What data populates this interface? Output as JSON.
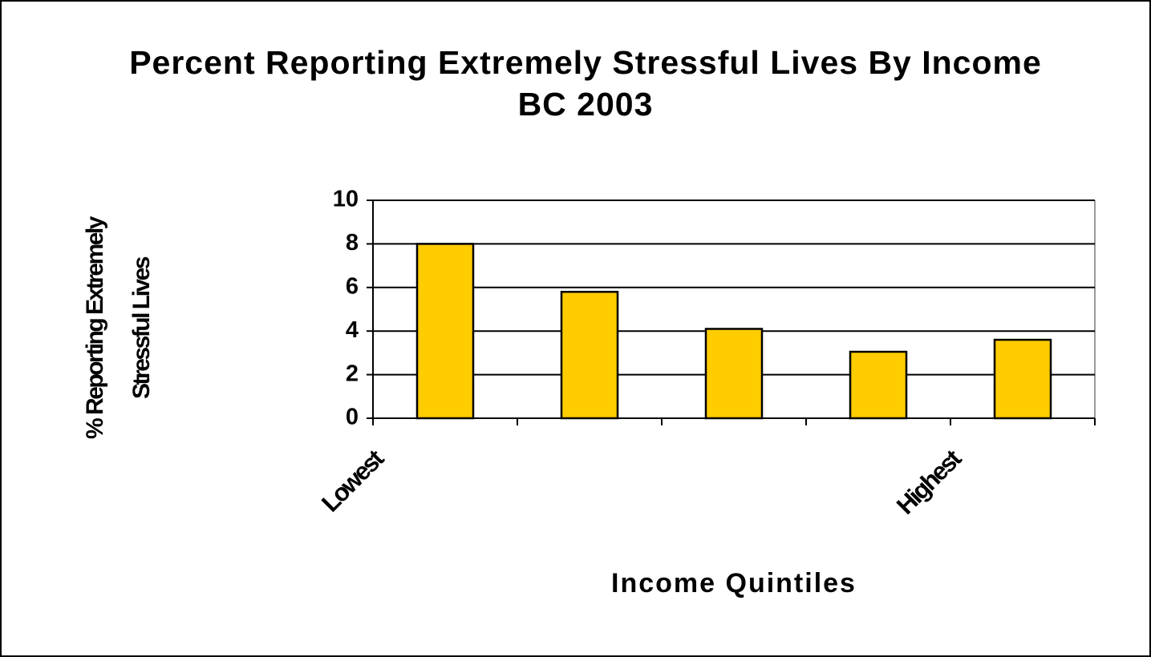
{
  "chart_data": {
    "type": "bar",
    "title": "Percent Reporting Extremely Stressful Lives By Income BC 2003",
    "y_label": "% Reporting Extremely Stressful Lives",
    "x_label": "Income Quintiles",
    "categories": [
      "Lowest",
      null,
      null,
      null,
      "Highest"
    ],
    "values": [
      8.0,
      5.8,
      4.1,
      3.05,
      3.6
    ],
    "color": "#ffcc00",
    "ylim": [
      0,
      10
    ],
    "yticks": [
      0,
      2,
      4,
      6,
      8,
      10
    ],
    "grid": true
  }
}
